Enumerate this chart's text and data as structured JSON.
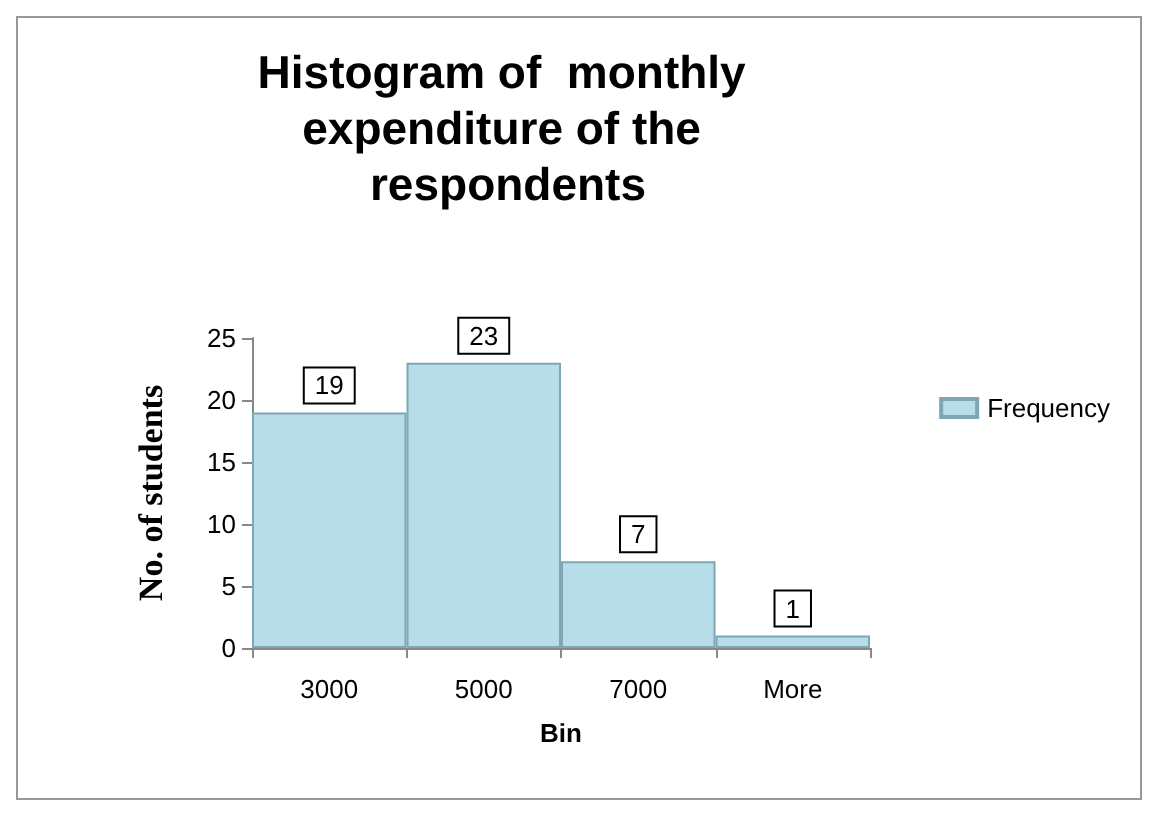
{
  "chart_data": {
    "type": "bar",
    "title": "Histogram of  monthly expenditure of the respondents",
    "xlabel": "Bin",
    "ylabel": "No. of students",
    "categories": [
      "3000",
      "5000",
      "7000",
      "More"
    ],
    "series": [
      {
        "name": "Frequency",
        "color": "#b7dde8",
        "values": [
          19,
          23,
          7,
          1
        ]
      }
    ],
    "ylim": [
      0,
      25
    ],
    "yticks": [
      0,
      5,
      10,
      15,
      20,
      25
    ],
    "grid": false,
    "legend": "right",
    "data_labels": true
  }
}
